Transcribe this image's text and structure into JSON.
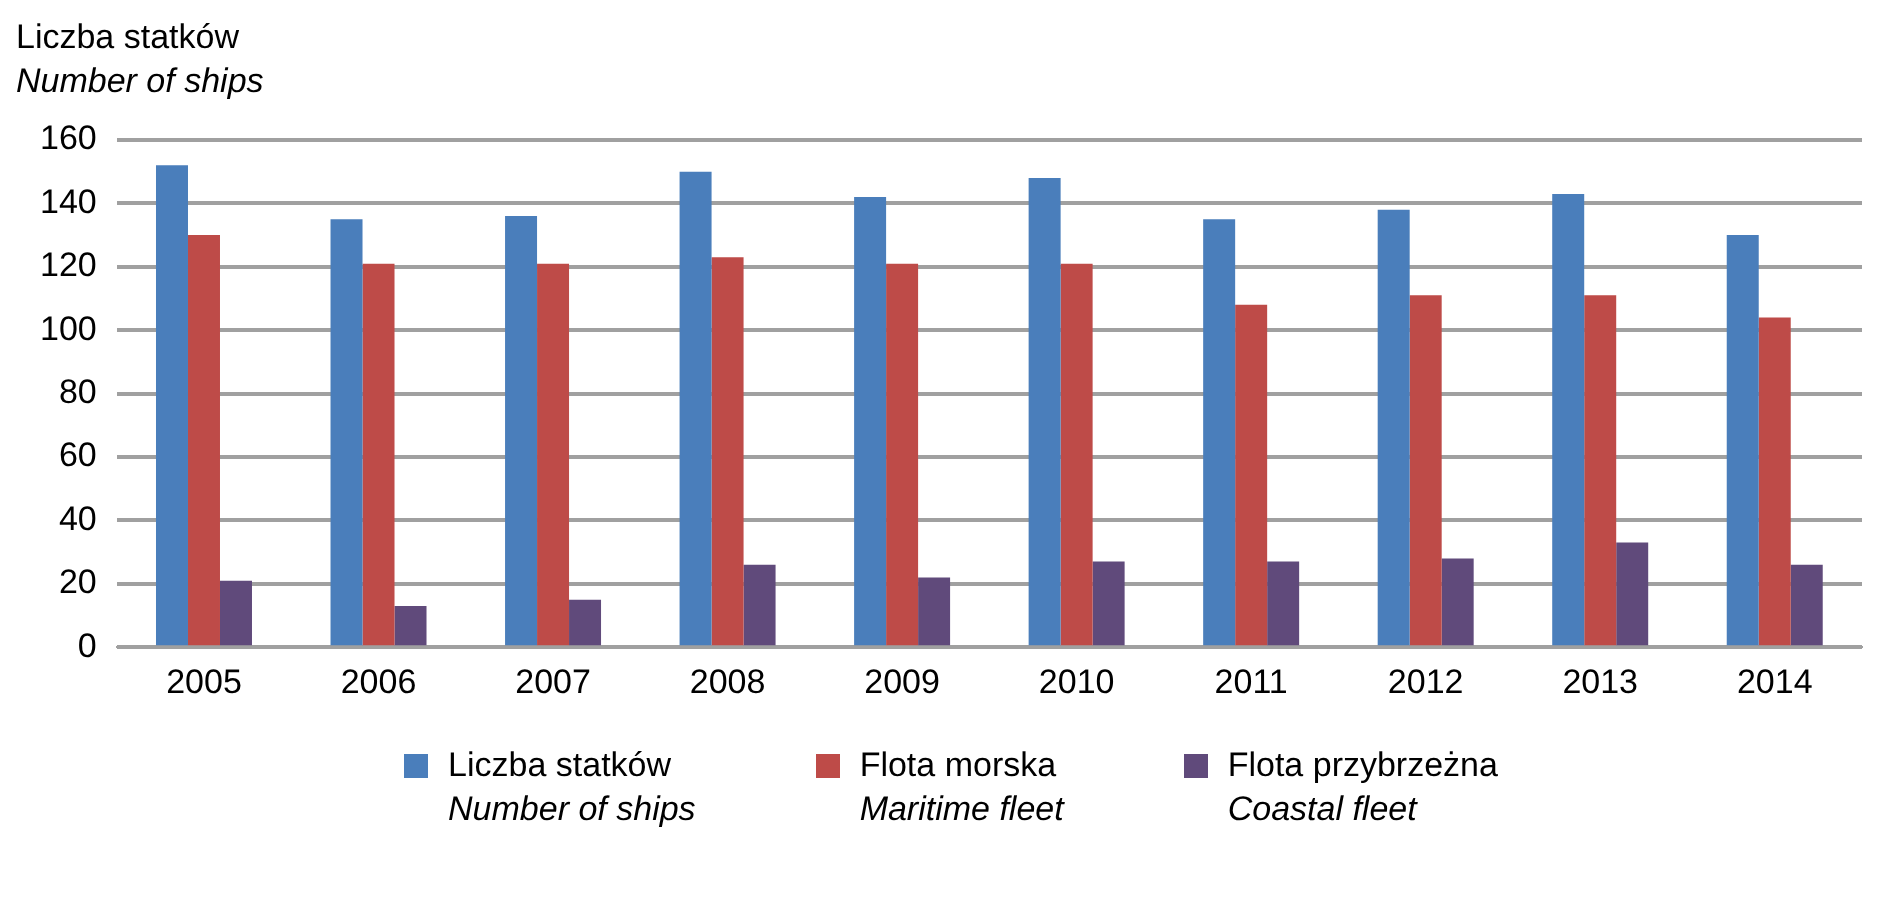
{
  "chart_data": {
    "type": "bar",
    "ylabel": "Liczba statków\nNumber of ships",
    "categories": [
      "2005",
      "2006",
      "2007",
      "2008",
      "2009",
      "2010",
      "2011",
      "2012",
      "2013",
      "2014"
    ],
    "series": [
      {
        "name": "Liczba statków\nNumber of ships",
        "color": "#4a7ebb",
        "values": [
          152,
          135,
          136,
          150,
          142,
          148,
          135,
          138,
          143,
          130
        ]
      },
      {
        "name": "Flota morska\nMaritime fleet",
        "color": "#be4b48",
        "values": [
          130,
          121,
          121,
          123,
          121,
          121,
          108,
          111,
          111,
          104
        ]
      },
      {
        "name": "Flota przybrzeżna\nCoastal fleet",
        "color": "#604a7b",
        "values": [
          21,
          13,
          15,
          26,
          22,
          27,
          27,
          28,
          33,
          26
        ]
      }
    ],
    "ylim": [
      0,
      160
    ],
    "yticks": [
      0,
      20,
      40,
      60,
      80,
      100,
      120,
      140,
      160
    ],
    "grid": "y",
    "legend": "bottom"
  }
}
